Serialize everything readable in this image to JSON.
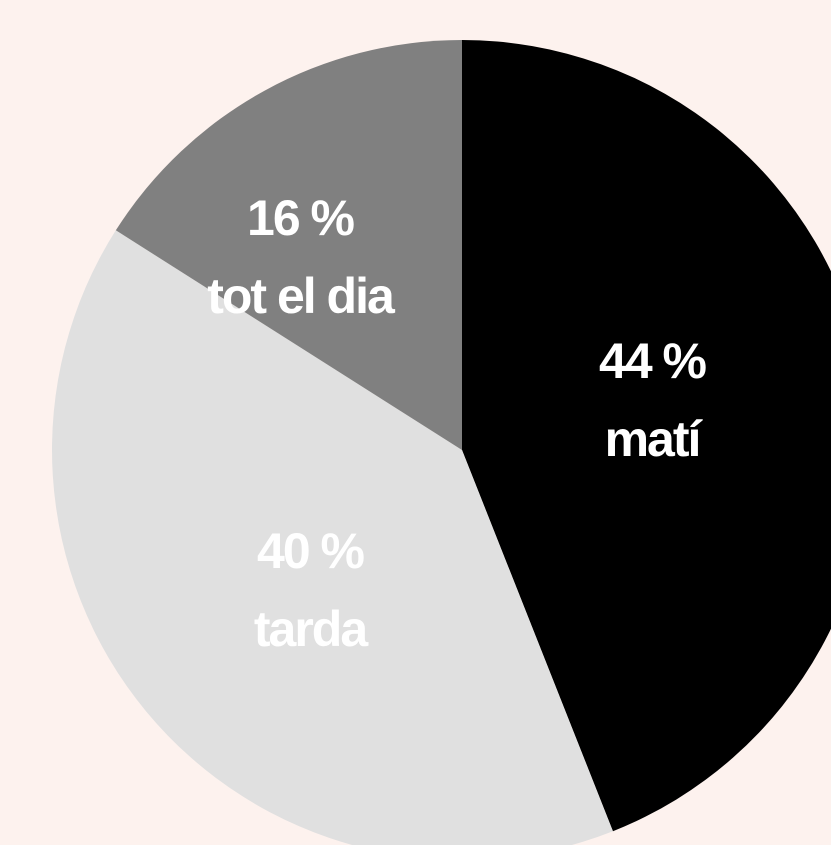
{
  "chart_data": {
    "type": "pie",
    "categories": [
      "matí",
      "tarda",
      "tot el dia"
    ],
    "values": [
      44,
      40,
      16
    ],
    "value_labels": [
      "44 %",
      "40 %",
      "16 %"
    ],
    "colors": [
      "#000000",
      "#e0e0e0",
      "#808080"
    ]
  }
}
